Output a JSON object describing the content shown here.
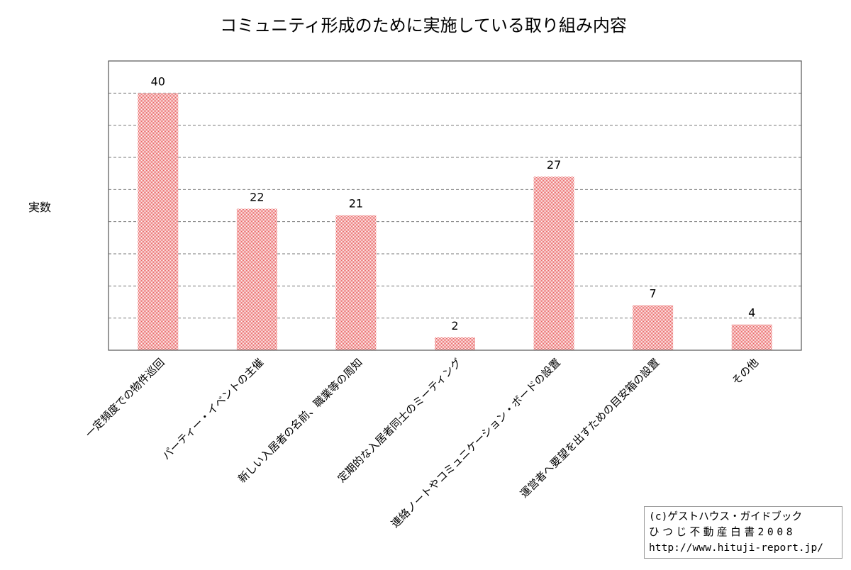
{
  "chart_data": {
    "type": "bar",
    "title": "コミュニティ形成のために実施している取り組み内容",
    "ylabel": "実数",
    "xlabel": "",
    "categories": [
      "一定頻度での物件巡回",
      "パーティー・イベントの主催",
      "新しい入居者の名前、職業等の周知",
      "定期的な入居者同士のミーティング",
      "連絡ノートやコミュニケーション・ボードの設置",
      "運営者へ要望を出すための目安箱の設置",
      "その他"
    ],
    "values": [
      40,
      22,
      21,
      2,
      27,
      7,
      4
    ],
    "ylim": [
      0,
      45
    ],
    "y_gridlines": [
      5,
      10,
      15,
      20,
      25,
      30,
      35,
      40
    ],
    "grid": true,
    "y_tick_labels_shown": false,
    "bar_color": "#f4a3a3",
    "data_labels": true
  },
  "credit": {
    "line1": "(c)ゲストハウス・ガイドブック",
    "line2": "ひつじ不動産白書2008",
    "line3": "http://www.hituji-report.jp/"
  }
}
